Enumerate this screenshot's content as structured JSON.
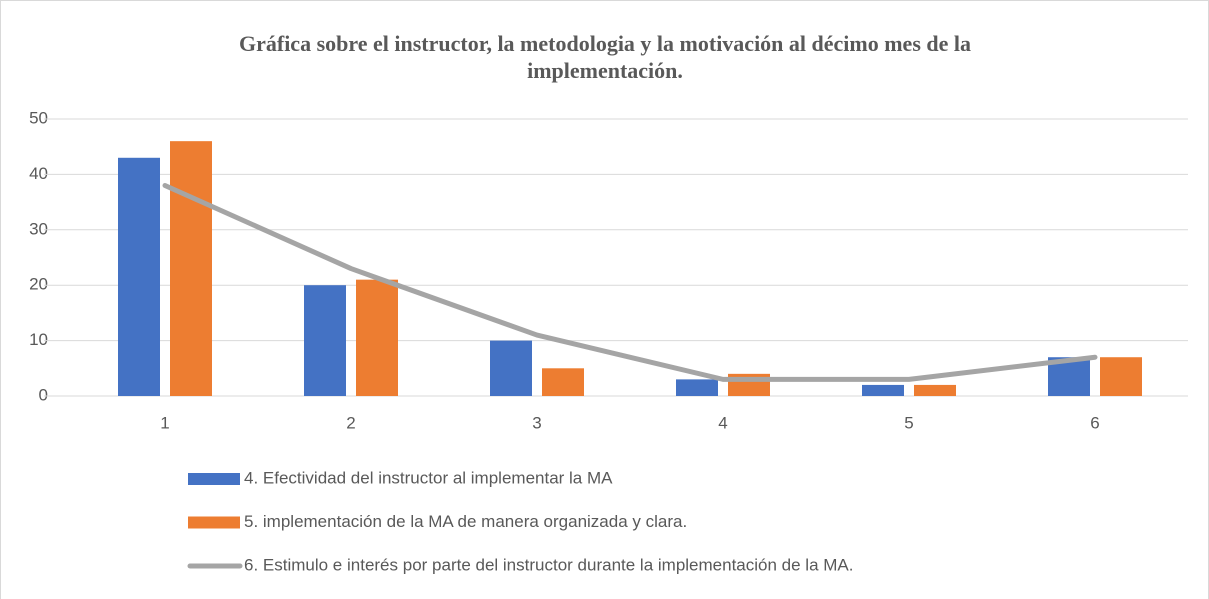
{
  "chart_data": {
    "type": "bar",
    "title": "Gráfica sobre el instructor, la metodologia y la motivación al décimo mes de la implementación.",
    "categories": [
      "1",
      "2",
      "3",
      "4",
      "5",
      "6"
    ],
    "series": [
      {
        "name": "4. Efectividad del instructor al implementar la MA",
        "color": "#4472c4",
        "values": [
          43,
          20,
          10,
          3,
          2,
          7
        ]
      },
      {
        "name": "5. implementación de la MA de manera organizada y clara.",
        "color": "#ed7d31",
        "values": [
          46,
          21,
          5,
          4,
          2,
          7
        ]
      },
      {
        "name": "6. Estimulo e interés por parte del instructor durante la implementación de la MA.",
        "color": "#a5a5a5",
        "type": "line",
        "values": [
          38,
          23,
          11,
          3,
          3,
          7
        ]
      }
    ],
    "ylim": [
      0,
      50
    ],
    "yticks": [
      0,
      10,
      20,
      30,
      40,
      50
    ],
    "grid": true,
    "legend": "bottom"
  }
}
